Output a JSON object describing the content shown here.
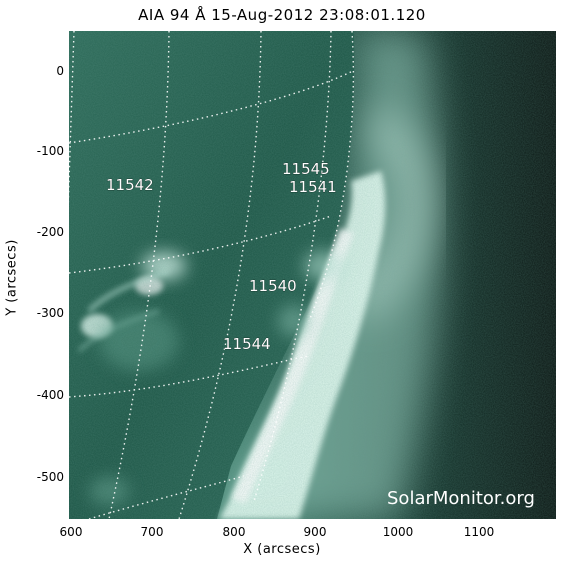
{
  "title": "AIA 94 Å 15-Aug-2012 23:08:01.120",
  "watermark": "SolarMonitor.org",
  "axes": {
    "xlabel": "X (arcsecs)",
    "ylabel": "Y (arcsecs)",
    "xticks": [
      "600",
      "700",
      "800",
      "900",
      "1000",
      "1100"
    ],
    "yticks": [
      "0",
      "-100",
      "-200",
      "-300",
      "-400",
      "-500"
    ]
  },
  "active_regions": [
    {
      "id": "11542",
      "x_arcsec": 660,
      "y_arcsec": -145
    },
    {
      "id": "11545",
      "x_arcsec": 900,
      "y_arcsec": -120
    },
    {
      "id": "11541",
      "x_arcsec": 905,
      "y_arcsec": -140
    },
    {
      "id": "11540",
      "x_arcsec": 885,
      "y_arcsec": -265
    },
    {
      "id": "11544",
      "x_arcsec": 810,
      "y_arcsec": -335
    }
  ],
  "colors": {
    "disk": "#1e5a48",
    "limb_bright": "#f4fff9",
    "corona": "#4e8f7e",
    "background": "#0b1512",
    "grid": "#ffffff"
  }
}
